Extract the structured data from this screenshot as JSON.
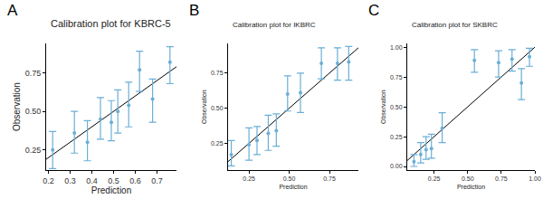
{
  "chart_data": [
    {
      "type": "scatter",
      "label": "A",
      "title": "Calibration plot for KBRC-5",
      "x_label": "Prediction",
      "y_label": "Observation",
      "color": "#6aaed6",
      "marker": "circle",
      "grid": false,
      "x": [
        0.22,
        0.32,
        0.38,
        0.44,
        0.49,
        0.52,
        0.57,
        0.62,
        0.68,
        0.76
      ],
      "values": [
        0.25,
        0.36,
        0.3,
        0.45,
        0.43,
        0.5,
        0.54,
        0.77,
        0.58,
        0.82
      ],
      "lower": [
        0.13,
        0.23,
        0.18,
        0.32,
        0.31,
        0.36,
        0.4,
        0.63,
        0.43,
        0.68
      ],
      "upper": [
        0.37,
        0.5,
        0.44,
        0.59,
        0.57,
        0.64,
        0.69,
        0.89,
        0.71,
        0.92
      ],
      "reference": {
        "x": [
          0,
          1
        ],
        "y": [
          0,
          1
        ]
      },
      "xlim": [
        0.19,
        0.79
      ],
      "ylim": [
        0.12,
        0.94
      ],
      "xticks": [
        0.2,
        0.3,
        0.4,
        0.5,
        0.6,
        0.7
      ],
      "yticks": [
        {
          "value": 0.25,
          "label": "0.25"
        },
        {
          "value": 0.5,
          "label": "0.50"
        },
        {
          "value": 0.75,
          "label": "0.75"
        }
      ]
    },
    {
      "type": "scatter",
      "label": "B",
      "title": "Calibration plot for IKBRC",
      "x_label": "Prediction",
      "y_label": "Observation",
      "color": "#6aaed6",
      "marker": "circle",
      "grid": false,
      "x": [
        0.14,
        0.25,
        0.3,
        0.37,
        0.42,
        0.49,
        0.57,
        0.7,
        0.8,
        0.87
      ],
      "values": [
        0.17,
        0.24,
        0.27,
        0.32,
        0.34,
        0.6,
        0.61,
        0.82,
        0.82,
        0.83
      ],
      "lower": [
        0.09,
        0.13,
        0.17,
        0.2,
        0.23,
        0.48,
        0.47,
        0.71,
        0.7,
        0.7
      ],
      "upper": [
        0.27,
        0.36,
        0.37,
        0.45,
        0.46,
        0.73,
        0.75,
        0.93,
        0.93,
        0.94
      ],
      "reference": {
        "x": [
          0,
          1
        ],
        "y": [
          0,
          1
        ]
      },
      "xlim": [
        0.12,
        0.93
      ],
      "ylim": [
        0.06,
        0.96
      ],
      "xticks": [
        {
          "value": 0.25,
          "label": "0.25"
        },
        {
          "value": 0.5,
          "label": "0.50"
        },
        {
          "value": 0.75,
          "label": "0.75"
        }
      ],
      "yticks": [
        {
          "value": 0.25,
          "label": "0.25"
        },
        {
          "value": 0.5,
          "label": "0.50"
        },
        {
          "value": 0.75,
          "label": "0.75"
        }
      ]
    },
    {
      "type": "scatter",
      "label": "C",
      "title": "Calibration plot for SKBRC",
      "x_label": "Prediction",
      "y_label": "Observation",
      "color": "#6aaed6",
      "marker": "circle",
      "grid": false,
      "x": [
        0.1,
        0.15,
        0.19,
        0.23,
        0.31,
        0.55,
        0.73,
        0.83,
        0.9,
        0.96
      ],
      "values": [
        0.04,
        0.1,
        0.14,
        0.15,
        0.32,
        0.89,
        0.87,
        0.9,
        0.7,
        0.92
      ],
      "lower": [
        0.0,
        0.03,
        0.06,
        0.07,
        0.2,
        0.79,
        0.75,
        0.8,
        0.56,
        0.84
      ],
      "upper": [
        0.1,
        0.2,
        0.25,
        0.27,
        0.45,
        0.98,
        0.97,
        0.98,
        0.82,
        0.99
      ],
      "reference": {
        "x": [
          0,
          1
        ],
        "y": [
          0,
          1
        ]
      },
      "xlim": [
        0.05,
        1.0
      ],
      "ylim": [
        -0.03,
        1.03
      ],
      "xticks": [
        {
          "value": 0.25,
          "label": "0.25"
        },
        {
          "value": 0.5,
          "label": "0.50"
        },
        {
          "value": 0.75,
          "label": "0.75"
        },
        {
          "value": 1,
          "label": "1.00"
        }
      ],
      "yticks": [
        {
          "value": 0,
          "label": "0.00"
        },
        {
          "value": 0.25,
          "label": "0.25"
        },
        {
          "value": 0.5,
          "label": "0.50"
        },
        {
          "value": 0.75,
          "label": "0.75"
        },
        {
          "value": 1,
          "label": "1.00"
        }
      ]
    }
  ]
}
